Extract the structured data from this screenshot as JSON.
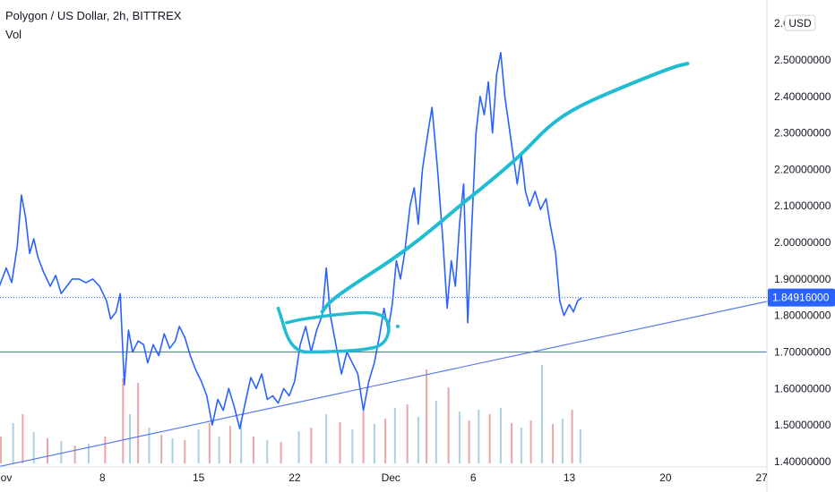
{
  "legend": {
    "symbol_line": "Polygon / US Dollar, 2h, BITTREX",
    "volume_label": "Vol"
  },
  "currency_badge": "USD",
  "colors": {
    "price_line": "#2962ff",
    "drawing": "#1fbcd2",
    "trendline": "#5b7bf0",
    "last_price_badge": "#2962ff",
    "volume_up": "#e9a6a6",
    "volume_down": "#a8d2e0"
  },
  "chart_data": {
    "type": "line",
    "title": "Polygon / US Dollar, 2h, BITTREX",
    "xlabel": "",
    "ylabel": "",
    "ylim": [
      1.39,
      2.62
    ],
    "grid": false,
    "x_ticks": [
      {
        "day": 1,
        "label": "ov"
      },
      {
        "day": 8,
        "label": "8"
      },
      {
        "day": 15,
        "label": "15"
      },
      {
        "day": 22,
        "label": "22"
      },
      {
        "day": 29,
        "label": "Dec"
      },
      {
        "day": 35,
        "label": "6"
      },
      {
        "day": 42,
        "label": "13"
      },
      {
        "day": 49,
        "label": "20"
      },
      {
        "day": 56,
        "label": "27"
      }
    ],
    "y_ticks": [
      {
        "value": 2.6,
        "label": "2.6"
      },
      {
        "value": 2.5,
        "label": "2.50000000"
      },
      {
        "value": 2.4,
        "label": "2.40000000"
      },
      {
        "value": 2.3,
        "label": "2.30000000"
      },
      {
        "value": 2.2,
        "label": "2.20000000"
      },
      {
        "value": 2.1,
        "label": "2.10000000"
      },
      {
        "value": 2.0,
        "label": "2.00000000"
      },
      {
        "value": 1.9,
        "label": "1.90000000"
      },
      {
        "value": 1.8,
        "label": "1.80000000"
      },
      {
        "value": 1.7,
        "label": "1.70000000"
      },
      {
        "value": 1.6,
        "label": "1.60000000"
      },
      {
        "value": 1.5,
        "label": "1.50000000"
      },
      {
        "value": 1.4,
        "label": "1.40000000"
      }
    ],
    "last_price": 1.84916,
    "last_price_label": "1.84916000",
    "horizontal_level": 1.7,
    "series": [
      {
        "name": "",
        "points": [
          [
            0.0,
            1.91
          ],
          [
            0.5,
            1.88
          ],
          [
            1.0,
            1.93
          ],
          [
            1.4,
            1.89
          ],
          [
            1.8,
            1.99
          ],
          [
            2.1,
            2.13
          ],
          [
            2.4,
            2.07
          ],
          [
            2.7,
            1.97
          ],
          [
            3.0,
            2.01
          ],
          [
            3.3,
            1.96
          ],
          [
            3.7,
            1.92
          ],
          [
            4.2,
            1.88
          ],
          [
            4.6,
            1.91
          ],
          [
            5.0,
            1.86
          ],
          [
            5.4,
            1.88
          ],
          [
            5.8,
            1.9
          ],
          [
            6.3,
            1.9
          ],
          [
            6.8,
            1.89
          ],
          [
            7.3,
            1.9
          ],
          [
            7.8,
            1.88
          ],
          [
            8.3,
            1.84
          ],
          [
            8.6,
            1.79
          ],
          [
            9.0,
            1.81
          ],
          [
            9.3,
            1.86
          ],
          [
            9.6,
            1.61
          ],
          [
            9.9,
            1.76
          ],
          [
            10.2,
            1.7
          ],
          [
            10.6,
            1.73
          ],
          [
            11.0,
            1.72
          ],
          [
            11.3,
            1.67
          ],
          [
            11.7,
            1.72
          ],
          [
            12.1,
            1.69
          ],
          [
            12.5,
            1.75
          ],
          [
            12.9,
            1.71
          ],
          [
            13.3,
            1.73
          ],
          [
            13.6,
            1.77
          ],
          [
            14.0,
            1.74
          ],
          [
            14.4,
            1.69
          ],
          [
            14.8,
            1.65
          ],
          [
            15.2,
            1.62
          ],
          [
            15.6,
            1.58
          ],
          [
            16.0,
            1.5
          ],
          [
            16.4,
            1.57
          ],
          [
            16.8,
            1.54
          ],
          [
            17.2,
            1.6
          ],
          [
            17.6,
            1.55
          ],
          [
            18.0,
            1.49
          ],
          [
            18.4,
            1.56
          ],
          [
            18.8,
            1.63
          ],
          [
            19.2,
            1.6
          ],
          [
            19.6,
            1.64
          ],
          [
            20.0,
            1.57
          ],
          [
            20.4,
            1.58
          ],
          [
            20.8,
            1.56
          ],
          [
            21.2,
            1.6
          ],
          [
            21.6,
            1.58
          ],
          [
            22.0,
            1.62
          ],
          [
            22.4,
            1.72
          ],
          [
            22.8,
            1.77
          ],
          [
            23.2,
            1.7
          ],
          [
            23.6,
            1.76
          ],
          [
            24.0,
            1.8
          ],
          [
            24.3,
            1.93
          ],
          [
            24.6,
            1.8
          ],
          [
            25.0,
            1.72
          ],
          [
            25.4,
            1.64
          ],
          [
            25.8,
            1.7
          ],
          [
            26.2,
            1.67
          ],
          [
            26.6,
            1.64
          ],
          [
            27.0,
            1.54
          ],
          [
            27.4,
            1.62
          ],
          [
            27.8,
            1.67
          ],
          [
            28.2,
            1.75
          ],
          [
            28.5,
            1.82
          ],
          [
            28.8,
            1.76
          ],
          [
            29.1,
            1.83
          ],
          [
            29.4,
            1.95
          ],
          [
            29.7,
            1.9
          ],
          [
            30.0,
            1.97
          ],
          [
            30.4,
            2.1
          ],
          [
            30.7,
            2.15
          ],
          [
            31.0,
            2.05
          ],
          [
            31.3,
            2.2
          ],
          [
            31.7,
            2.3
          ],
          [
            32.0,
            2.37
          ],
          [
            32.4,
            2.2
          ],
          [
            32.8,
            2.0
          ],
          [
            33.1,
            1.82
          ],
          [
            33.4,
            1.95
          ],
          [
            33.7,
            1.88
          ],
          [
            34.0,
            2.05
          ],
          [
            34.3,
            2.16
          ],
          [
            34.6,
            1.78
          ],
          [
            34.9,
            2.05
          ],
          [
            35.2,
            2.3
          ],
          [
            35.5,
            2.4
          ],
          [
            35.8,
            2.35
          ],
          [
            36.1,
            2.44
          ],
          [
            36.4,
            2.3
          ],
          [
            36.7,
            2.46
          ],
          [
            37.0,
            2.52
          ],
          [
            37.3,
            2.4
          ],
          [
            37.6,
            2.32
          ],
          [
            37.9,
            2.24
          ],
          [
            38.2,
            2.16
          ],
          [
            38.5,
            2.24
          ],
          [
            38.8,
            2.14
          ],
          [
            39.1,
            2.1
          ],
          [
            39.5,
            2.14
          ],
          [
            39.9,
            2.09
          ],
          [
            40.3,
            2.12
          ],
          [
            40.6,
            2.05
          ],
          [
            41.0,
            1.97
          ],
          [
            41.3,
            1.84
          ],
          [
            41.6,
            1.8
          ],
          [
            42.0,
            1.83
          ],
          [
            42.3,
            1.81
          ],
          [
            42.6,
            1.84
          ],
          [
            42.9,
            1.849
          ]
        ]
      }
    ],
    "volume": {
      "ylim": [
        0,
        1
      ],
      "bars": [
        [
          0.6,
          0.3,
          "up"
        ],
        [
          1.5,
          0.45,
          "down"
        ],
        [
          2.2,
          0.55,
          "up"
        ],
        [
          3.0,
          0.35,
          "down"
        ],
        [
          4.0,
          0.28,
          "up"
        ],
        [
          5.0,
          0.25,
          "down"
        ],
        [
          6.0,
          0.2,
          "up"
        ],
        [
          7.0,
          0.22,
          "down"
        ],
        [
          8.2,
          0.3,
          "up"
        ],
        [
          9.5,
          0.95,
          "up"
        ],
        [
          10.0,
          0.55,
          "down"
        ],
        [
          10.6,
          0.9,
          "up"
        ],
        [
          11.4,
          0.4,
          "down"
        ],
        [
          12.3,
          0.32,
          "up"
        ],
        [
          13.1,
          0.28,
          "down"
        ],
        [
          14.0,
          0.26,
          "up"
        ],
        [
          15.0,
          0.38,
          "down"
        ],
        [
          15.8,
          0.45,
          "up"
        ],
        [
          16.5,
          0.3,
          "down"
        ],
        [
          17.3,
          0.42,
          "up"
        ],
        [
          18.1,
          0.48,
          "down"
        ],
        [
          19.0,
          0.3,
          "up"
        ],
        [
          20.0,
          0.26,
          "down"
        ],
        [
          21.0,
          0.24,
          "up"
        ],
        [
          22.3,
          0.36,
          "down"
        ],
        [
          23.2,
          0.4,
          "up"
        ],
        [
          24.3,
          0.55,
          "down"
        ],
        [
          25.3,
          0.46,
          "up"
        ],
        [
          26.2,
          0.38,
          "down"
        ],
        [
          27.0,
          0.58,
          "up"
        ],
        [
          27.8,
          0.44,
          "down"
        ],
        [
          28.6,
          0.5,
          "up"
        ],
        [
          29.3,
          0.62,
          "down"
        ],
        [
          30.2,
          0.66,
          "up"
        ],
        [
          31.0,
          0.52,
          "down"
        ],
        [
          31.6,
          1.05,
          "up"
        ],
        [
          32.3,
          0.7,
          "down"
        ],
        [
          33.2,
          0.85,
          "up"
        ],
        [
          34.0,
          0.58,
          "down"
        ],
        [
          34.7,
          0.48,
          "up"
        ],
        [
          35.4,
          0.6,
          "down"
        ],
        [
          36.2,
          0.55,
          "up"
        ],
        [
          37.0,
          0.62,
          "down"
        ],
        [
          37.8,
          0.45,
          "up"
        ],
        [
          38.5,
          0.4,
          "down"
        ],
        [
          39.2,
          0.48,
          "up"
        ],
        [
          40.0,
          1.1,
          "down"
        ],
        [
          40.8,
          0.44,
          "up"
        ],
        [
          41.5,
          0.5,
          "down"
        ],
        [
          42.2,
          0.6,
          "up"
        ],
        [
          42.8,
          0.38,
          "down"
        ]
      ]
    },
    "support_trendline": [
      [
        -1.5,
        1.37
      ],
      [
        57.8,
        1.85
      ]
    ],
    "drawings": {
      "rising_curve": [
        [
          24.0,
          1.81
        ],
        [
          24.6,
          1.84
        ],
        [
          26.5,
          1.89
        ],
        [
          29.0,
          1.95
        ],
        [
          31.5,
          2.02
        ],
        [
          34.0,
          2.1
        ],
        [
          36.0,
          2.16
        ],
        [
          38.5,
          2.24
        ],
        [
          40.5,
          2.32
        ],
        [
          42.5,
          2.37
        ],
        [
          45.5,
          2.42
        ],
        [
          49.5,
          2.48
        ],
        [
          50.6,
          2.49
        ]
      ],
      "consolidation_loop": [
        [
          20.8,
          1.82
        ],
        [
          21.8,
          1.7
        ],
        [
          24.0,
          1.7
        ],
        [
          27.0,
          1.705
        ],
        [
          28.6,
          1.72
        ],
        [
          29.0,
          1.78
        ],
        [
          28.0,
          1.81
        ],
        [
          25.5,
          1.805
        ],
        [
          22.5,
          1.79
        ],
        [
          21.4,
          1.78
        ]
      ],
      "dot": [
        29.5,
        1.77
      ]
    }
  }
}
